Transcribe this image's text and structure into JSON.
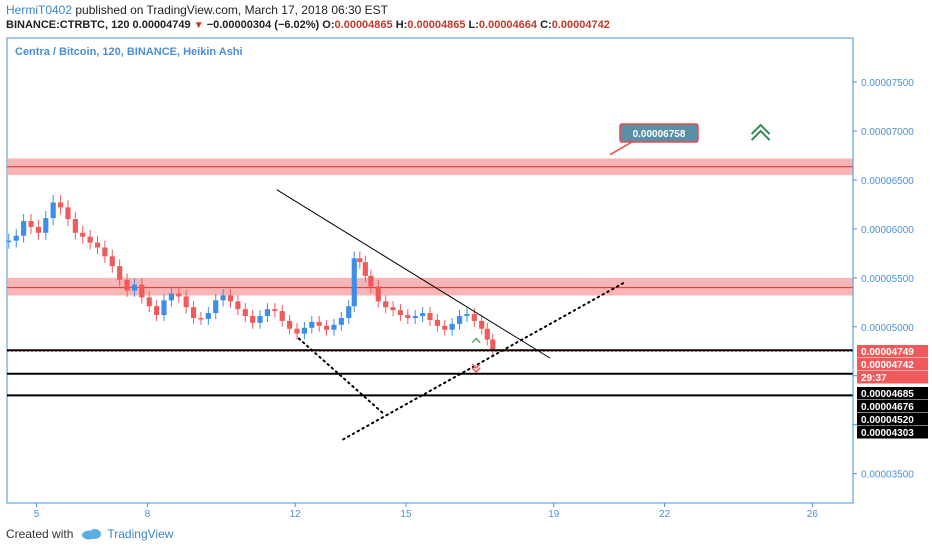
{
  "header": {
    "author": "HermiT0402",
    "published_text": "published on TradingView.com, March 17, 2018 06:30 EST",
    "symbol_line": "BINANCE:CTRBTC, 120",
    "last_price": "0.00004749",
    "change": "−0.00000304 (−6.02%)",
    "o_label": "O:",
    "o_value": "0.00004865",
    "h_label": "H:",
    "h_value": "0.00004865",
    "l_label": "L:",
    "l_value": "0.00004664",
    "c_label": "C:",
    "c_value": "0.00004742",
    "down_arrow": "▼"
  },
  "footer": {
    "created_with": "Created with",
    "brand": "TradingView"
  },
  "colors": {
    "up": "#3d8ee8",
    "down": "#f05a5a",
    "zone": "#f7a8a8",
    "line": "#000000",
    "axis_blue": "#4a90d9"
  },
  "chart_data": {
    "type": "candlestick",
    "title": "Centra / Bitcoin, 120, BINANCE, Heikin Ashi",
    "y_range": [
      3.2e-05,
      7.95e-05
    ],
    "y_ticks": [
      "0.00007500",
      "0.00007000",
      "0.00006500",
      "0.00006000",
      "0.00005500",
      "0.00005000",
      "0.00004500",
      "0.00004000",
      "0.00003500"
    ],
    "x_ticks": [
      {
        "label": "5",
        "day": 5
      },
      {
        "label": "8",
        "day": 8
      },
      {
        "label": "12",
        "day": 12
      },
      {
        "label": "15",
        "day": 15
      },
      {
        "label": "19",
        "day": 19
      },
      {
        "label": "22",
        "day": 22
      },
      {
        "label": "26",
        "day": 26
      }
    ],
    "x_range_days": [
      4.2,
      27.1
    ],
    "price_labels": [
      {
        "text": "0.00004749",
        "bg": "#f05a5a",
        "fg": "#ffffff",
        "value": 4.749e-05
      },
      {
        "text": "0.00004742",
        "bg": "#f05a5a",
        "fg": "#ffffff",
        "value": 4.742e-05
      },
      {
        "text": "29:37",
        "bg": "#f05a5a",
        "fg": "#ffffff",
        "value": 4.57e-05
      },
      {
        "text": "0.00004685",
        "bg": "#000000",
        "fg": "#ffffff",
        "value": 4.685e-05
      },
      {
        "text": "0.00004676",
        "bg": "#000000",
        "fg": "#ffffff",
        "value": 4.676e-05
      },
      {
        "text": "0.00004520",
        "bg": "#000000",
        "fg": "#ffffff",
        "value": 4.52e-05
      },
      {
        "text": "0.00004303",
        "bg": "#000000",
        "fg": "#ffffff",
        "value": 4.303e-05
      }
    ],
    "annotation": {
      "text": "0.00006758",
      "value": 6.758e-05
    },
    "zones": [
      {
        "from": 6.55e-05,
        "to": 6.72e-05,
        "mid": 6.635e-05
      },
      {
        "from": 5.32e-05,
        "to": 5.5e-05,
        "mid": 5.4e-05
      }
    ],
    "hlines": [
      4.76e-05,
      4.52e-05,
      4.3e-05
    ],
    "trend_lines": [
      {
        "style": "solid",
        "from": {
          "day": 11.5,
          "value": 6.4e-05
        },
        "to": {
          "day": 18.9,
          "value": 4.68e-05
        }
      },
      {
        "style": "dotted",
        "from": {
          "day": 12.1,
          "value": 4.88e-05
        },
        "to": {
          "day": 14.4,
          "value": 4.11e-05
        }
      },
      {
        "style": "dotted",
        "from": {
          "day": 13.3,
          "value": 3.85e-05
        },
        "to": {
          "day": 20.9,
          "value": 5.45e-05
        }
      }
    ],
    "markers": [
      {
        "type": "up-arrow",
        "day": 16.9,
        "value": 4.87e-05,
        "color": "#5aa070"
      },
      {
        "type": "down-arrow",
        "day": 16.9,
        "value": 4.59e-05,
        "color": "#f05a5a"
      },
      {
        "type": "double-up",
        "day": 24.6,
        "value": 7.01e-05,
        "color": "#2e8b57"
      }
    ],
    "series": [
      {
        "day": 4.25,
        "close": 5.88e-05
      },
      {
        "day": 4.45,
        "close": 5.93e-05
      },
      {
        "day": 4.65,
        "close": 6.08e-05
      },
      {
        "day": 4.85,
        "close": 6.02e-05
      },
      {
        "day": 5.05,
        "close": 5.96e-05
      },
      {
        "day": 5.25,
        "close": 6.11e-05
      },
      {
        "day": 5.45,
        "close": 6.27e-05
      },
      {
        "day": 5.65,
        "close": 6.22e-05
      },
      {
        "day": 5.85,
        "close": 6.1e-05
      },
      {
        "day": 6.05,
        "close": 5.96e-05
      },
      {
        "day": 6.25,
        "close": 5.92e-05
      },
      {
        "day": 6.45,
        "close": 5.86e-05
      },
      {
        "day": 6.65,
        "close": 5.81e-05
      },
      {
        "day": 6.85,
        "close": 5.72e-05
      },
      {
        "day": 7.05,
        "close": 5.62e-05
      },
      {
        "day": 7.25,
        "close": 5.48e-05
      },
      {
        "day": 7.45,
        "close": 5.37e-05
      },
      {
        "day": 7.65,
        "close": 5.43e-05
      },
      {
        "day": 7.85,
        "close": 5.3e-05
      },
      {
        "day": 8.05,
        "close": 5.21e-05
      },
      {
        "day": 8.25,
        "close": 5.12e-05
      },
      {
        "day": 8.45,
        "close": 5.27e-05
      },
      {
        "day": 8.65,
        "close": 5.34e-05
      },
      {
        "day": 8.85,
        "close": 5.31e-05
      },
      {
        "day": 9.05,
        "close": 5.2e-05
      },
      {
        "day": 9.25,
        "close": 5.09e-05
      },
      {
        "day": 9.45,
        "close": 5.08e-05
      },
      {
        "day": 9.65,
        "close": 5.14e-05
      },
      {
        "day": 9.85,
        "close": 5.27e-05
      },
      {
        "day": 10.05,
        "close": 5.32e-05
      },
      {
        "day": 10.25,
        "close": 5.26e-05
      },
      {
        "day": 10.45,
        "close": 5.18e-05
      },
      {
        "day": 10.65,
        "close": 5.11e-05
      },
      {
        "day": 10.85,
        "close": 5.04e-05
      },
      {
        "day": 11.05,
        "close": 5.11e-05
      },
      {
        "day": 11.25,
        "close": 5.18e-05
      },
      {
        "day": 11.45,
        "close": 5.16e-05
      },
      {
        "day": 11.65,
        "close": 5.06e-05
      },
      {
        "day": 11.85,
        "close": 4.98e-05
      },
      {
        "day": 12.05,
        "close": 4.93e-05
      },
      {
        "day": 12.25,
        "close": 4.99e-05
      },
      {
        "day": 12.45,
        "close": 5.05e-05
      },
      {
        "day": 12.65,
        "close": 5.01e-05
      },
      {
        "day": 12.85,
        "close": 4.97e-05
      },
      {
        "day": 13.05,
        "close": 5.02e-05
      },
      {
        "day": 13.25,
        "close": 5.09e-05
      },
      {
        "day": 13.45,
        "close": 5.21e-05
      },
      {
        "day": 13.6,
        "close": 5.7e-05
      },
      {
        "day": 13.75,
        "close": 5.66e-05
      },
      {
        "day": 13.9,
        "close": 5.52e-05
      },
      {
        "day": 14.05,
        "close": 5.41e-05
      },
      {
        "day": 14.25,
        "close": 5.26e-05
      },
      {
        "day": 14.45,
        "close": 5.2e-05
      },
      {
        "day": 14.65,
        "close": 5.17e-05
      },
      {
        "day": 14.85,
        "close": 5.12e-05
      },
      {
        "day": 15.05,
        "close": 5.09e-05
      },
      {
        "day": 15.25,
        "close": 5.11e-05
      },
      {
        "day": 15.45,
        "close": 5.14e-05
      },
      {
        "day": 15.65,
        "close": 5.07e-05
      },
      {
        "day": 15.85,
        "close": 5.01e-05
      },
      {
        "day": 16.05,
        "close": 4.97e-05
      },
      {
        "day": 16.25,
        "close": 5.03e-05
      },
      {
        "day": 16.45,
        "close": 5.11e-05
      },
      {
        "day": 16.65,
        "close": 5.13e-05
      },
      {
        "day": 16.85,
        "close": 5.06e-05
      },
      {
        "day": 17.05,
        "close": 4.98e-05
      },
      {
        "day": 17.2,
        "close": 4.87e-05
      },
      {
        "day": 17.35,
        "close": 4.75e-05
      }
    ]
  }
}
